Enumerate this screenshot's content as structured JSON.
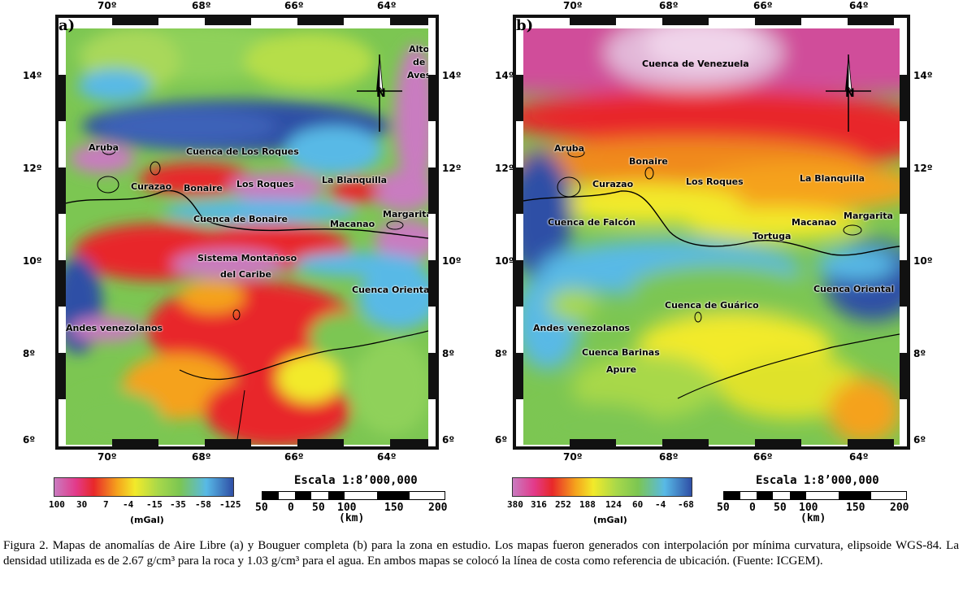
{
  "panels": [
    {
      "id": "a",
      "label": "a)",
      "top_lon_labels": [
        "70º",
        "68º",
        "66º",
        "64º"
      ],
      "bottom_lon_labels": [
        "70º",
        "68º",
        "66º",
        "64º"
      ],
      "left_lat_labels": [
        "14º",
        "12º",
        "10º",
        "8º",
        "6º"
      ],
      "right_lat_labels": [
        "14º",
        "12º",
        "10º",
        "8º",
        "6º"
      ],
      "places": [
        "Alto",
        "de",
        "Aves",
        "Aruba",
        "Cuenca de Los Roques",
        "Curazao",
        "Bonaire",
        "Los Roques",
        "La Blanquilla",
        "Cuenca de Bonaire",
        "Margarita",
        "Macanao",
        "Sistema Montañoso",
        "del Caribe",
        "Cuenca Oriental",
        "Andes venezolanos"
      ]
    },
    {
      "id": "b",
      "label": "b)",
      "top_lon_labels": [
        "70º",
        "68º",
        "66º",
        "64º"
      ],
      "bottom_lon_labels": [
        "70º",
        "68º",
        "66º",
        "64º"
      ],
      "left_lat_labels": [
        "14º",
        "12º",
        "10º",
        "8º",
        "6º"
      ],
      "right_lat_labels": [
        "14º",
        "12º",
        "10º",
        "8º",
        "6º"
      ],
      "places": [
        "Cuenca de Venezuela",
        "Aruba",
        "Bonaire",
        "Curazao",
        "Los Roques",
        "La Blanquilla",
        "Cuenca de Falcón",
        "Margarita",
        "Macanao",
        "Tortuga",
        "Cuenca Oriental",
        "Cuenca de Guárico",
        "Andes venezolanos",
        "Cuenca Barinas",
        "Apure"
      ]
    }
  ],
  "legend_a": {
    "ticks": [
      "100",
      "30",
      "7",
      "-4",
      "-15",
      "-35",
      "-58",
      "-125"
    ],
    "unit": "(mGal)"
  },
  "legend_b": {
    "ticks": [
      "380",
      "316",
      "252",
      "188",
      "124",
      "60",
      "-4",
      "-68"
    ],
    "unit": "(mGal)"
  },
  "scale": {
    "title": "Escala 1:8’000,000",
    "numbers": [
      "50",
      "0",
      "50",
      "100",
      "150",
      "200"
    ],
    "unit": "(km)"
  },
  "caption": "Figura 2. Mapas de anomalías de Aire Libre (a) y Bouguer completa (b) para la zona en estudio. Los mapas fueron generados con interpolación por mínima curvatura, elipsoide WGS-84. La densidad utilizada es de 2.67 g/cm³ para la roca y 1.03 g/cm³ para el agua. En ambos mapas se colocó la línea de costa como referencia de ubicación. (Fuente: ICGEM).",
  "colors": {
    "magenta": "#c97bc0",
    "red": "#e8282a",
    "orange": "#f5a21c",
    "yellow": "#f2ea2a",
    "green": "#7cc652",
    "cyan": "#58b9e6",
    "blue": "#2f4fa6"
  }
}
